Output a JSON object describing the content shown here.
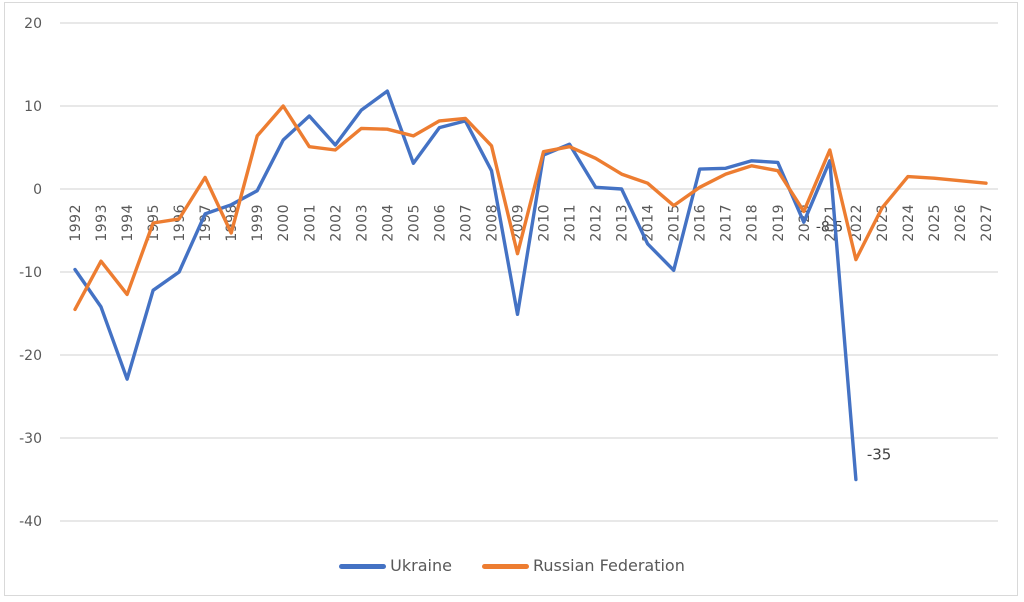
{
  "chart_data": {
    "type": "line",
    "title": "",
    "xlabel": "",
    "ylabel": "",
    "x": [
      1992,
      1993,
      1994,
      1995,
      1996,
      1997,
      1998,
      1999,
      2000,
      2001,
      2002,
      2003,
      2004,
      2005,
      2006,
      2007,
      2008,
      2009,
      2010,
      2011,
      2012,
      2013,
      2014,
      2015,
      2016,
      2017,
      2018,
      2019,
      2020,
      2021,
      2022,
      2023,
      2024,
      2025,
      2026,
      2027
    ],
    "series": [
      {
        "name": "Ukraine",
        "color": "#4472C4",
        "values": [
          -9.7,
          -14.2,
          -22.9,
          -12.2,
          -10.0,
          -3.0,
          -1.9,
          -0.2,
          5.9,
          8.8,
          5.3,
          9.5,
          11.8,
          3.1,
          7.4,
          8.2,
          2.2,
          -15.1,
          4.1,
          5.4,
          0.2,
          0.0,
          -6.6,
          -9.8,
          2.4,
          2.5,
          3.4,
          3.2,
          -4.0,
          3.4,
          -35.0,
          null,
          null,
          null,
          null,
          null
        ]
      },
      {
        "name": "Russian Federation",
        "color": "#ED7D31",
        "values": [
          -14.5,
          -8.7,
          -12.7,
          -4.1,
          -3.6,
          1.4,
          -5.3,
          6.4,
          10.0,
          5.1,
          4.7,
          7.3,
          7.2,
          6.4,
          8.2,
          8.5,
          5.2,
          -7.8,
          4.5,
          5.1,
          3.7,
          1.8,
          0.7,
          -2.0,
          0.2,
          1.8,
          2.8,
          2.2,
          -2.7,
          4.7,
          -8.5,
          -2.3,
          1.5,
          1.3,
          1.0,
          0.7
        ]
      }
    ],
    "ylim": [
      -40,
      20
    ],
    "yticks": [
      20,
      10,
      0,
      -10,
      -20,
      -30,
      -40
    ],
    "grid": true,
    "legend_position": "bottom",
    "annotations": [
      {
        "text": "-35",
        "series": "Ukraine",
        "year": 2022,
        "value": -35.0,
        "placement": "right-of-point"
      },
      {
        "text": "-8.5",
        "series": "Russian Federation",
        "year": 2022,
        "value": -8.5,
        "placement": "left-above-point"
      }
    ],
    "colors": {
      "gridline": "#d9d9d9",
      "tick_label": "#595959",
      "annotation": "#404040",
      "chart_border": "#d9d9d9",
      "background": "#ffffff"
    }
  }
}
